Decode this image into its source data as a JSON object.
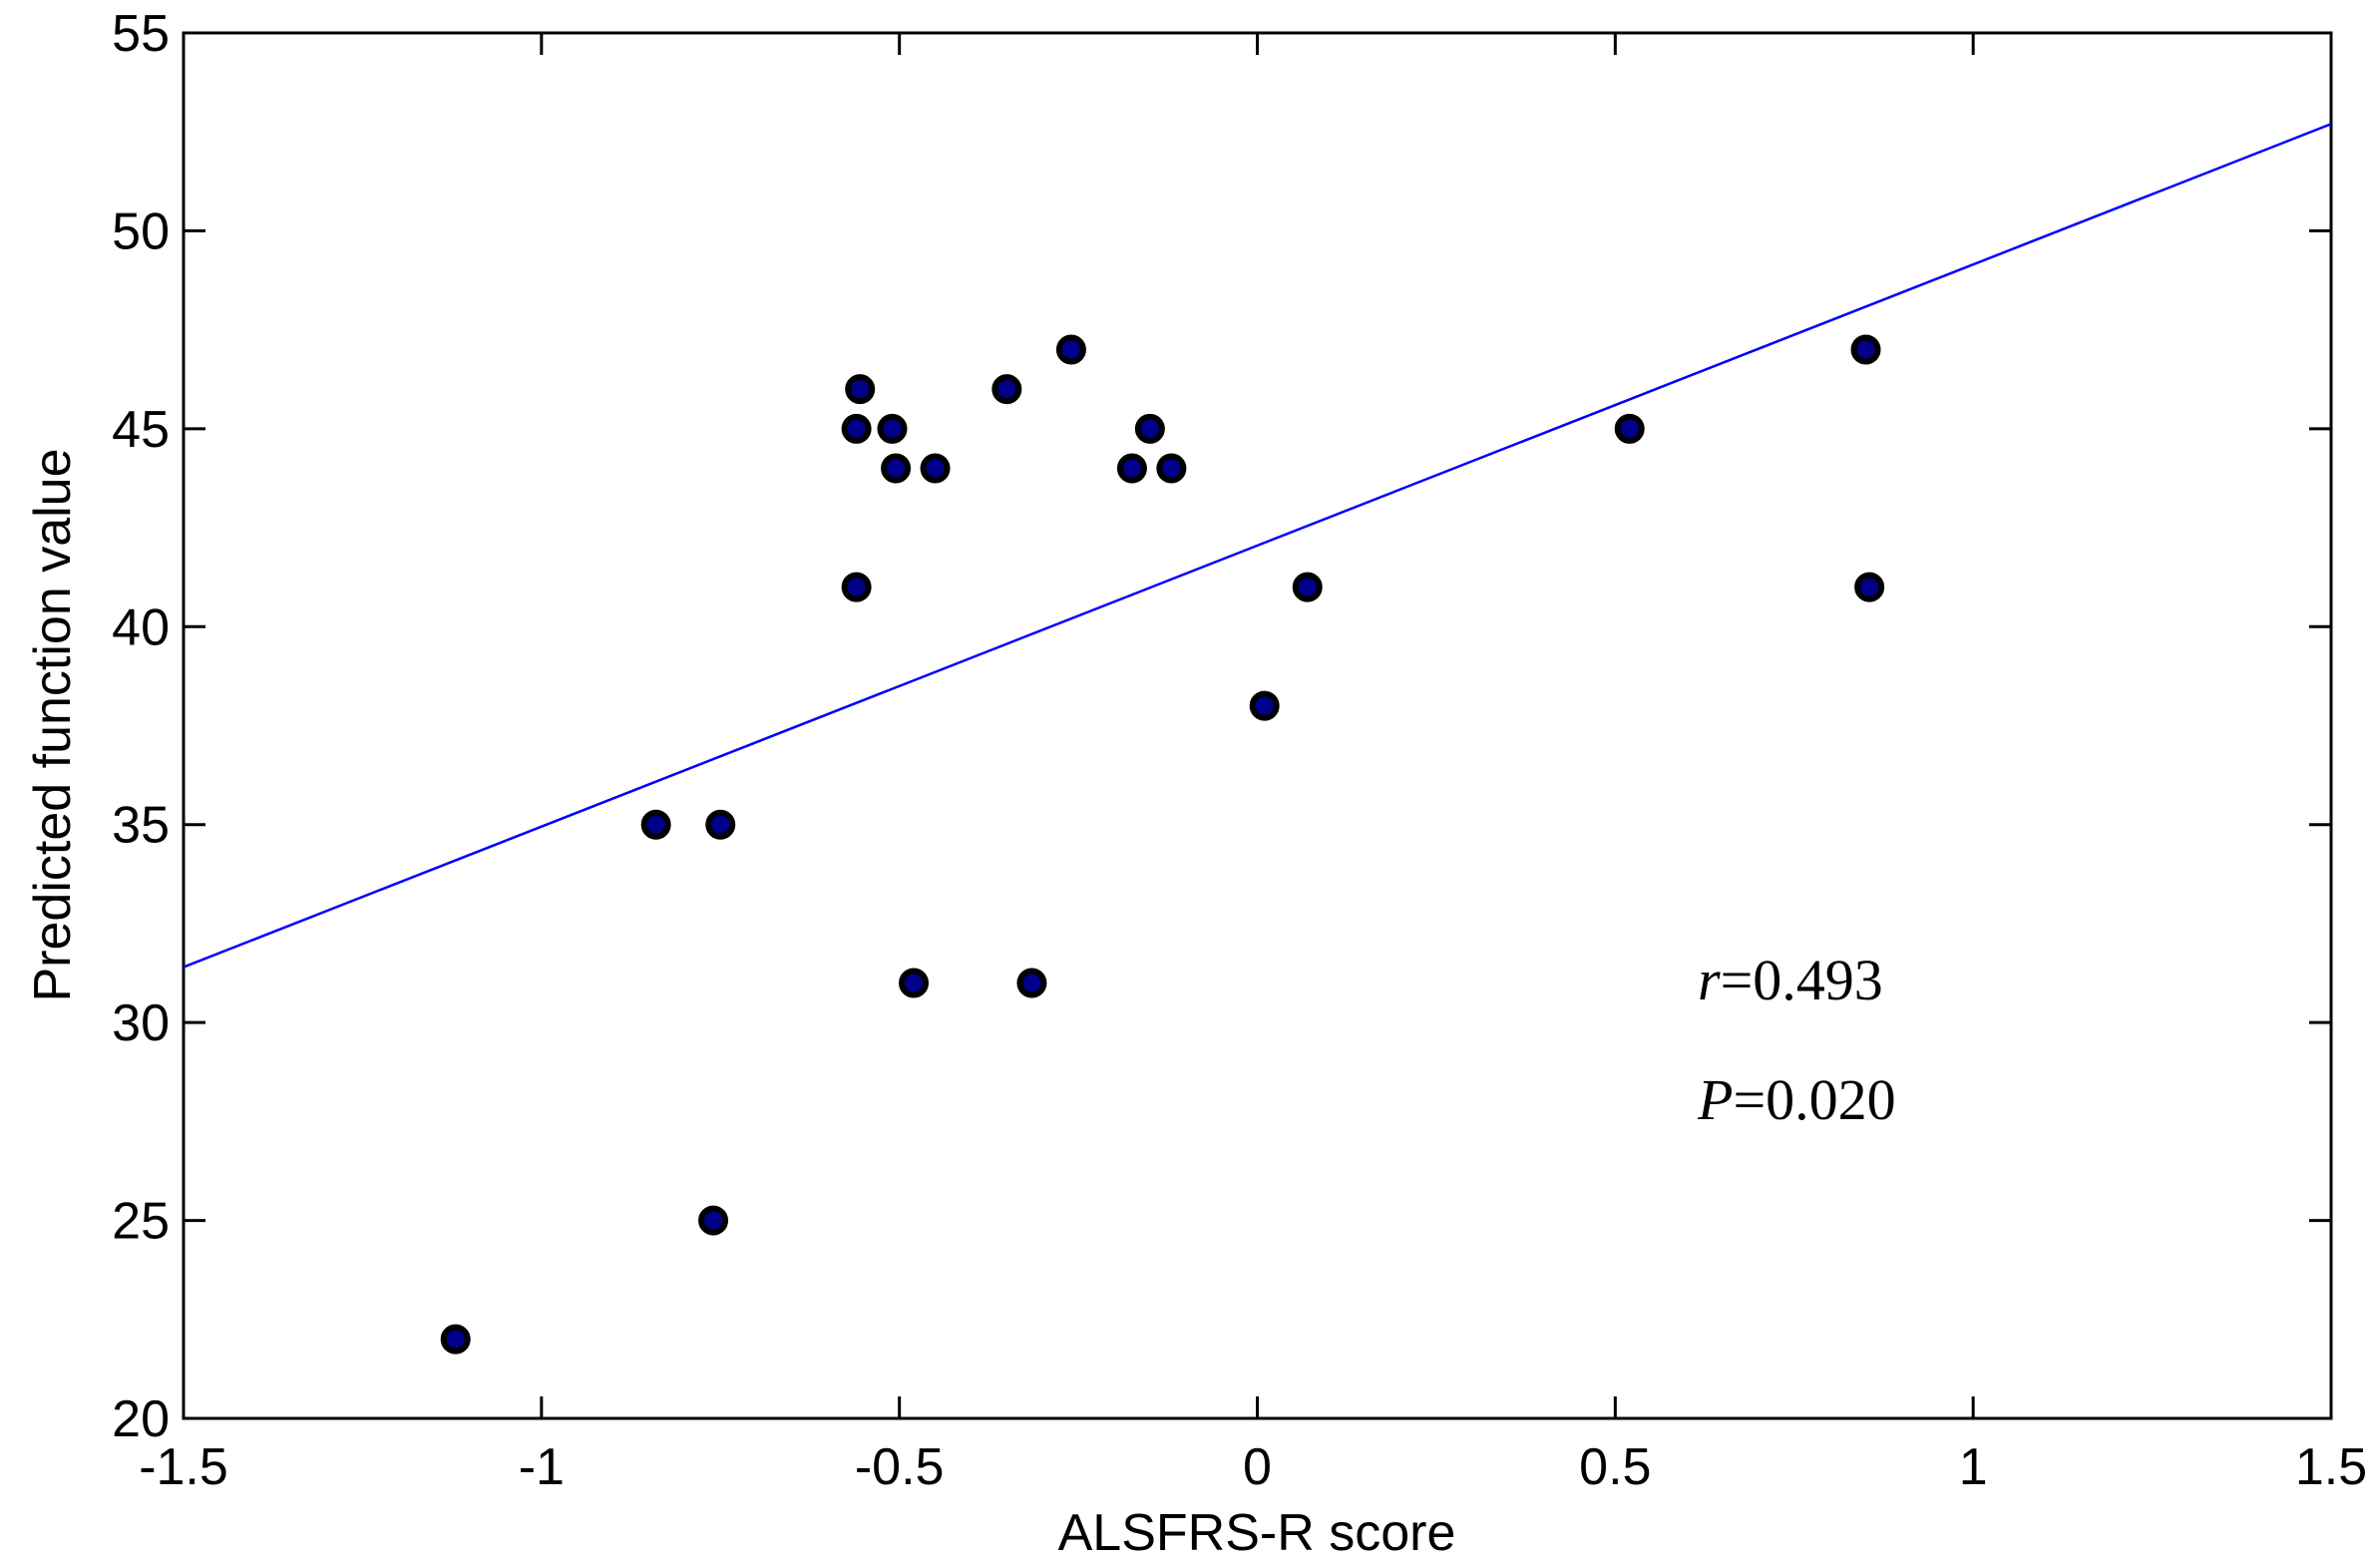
{
  "chart_data": {
    "type": "scatter",
    "xlabel": "ALSFRS-R score",
    "ylabel": "Predicted function value",
    "xlim": [
      -1.5,
      1.5
    ],
    "ylim": [
      20,
      55
    ],
    "xticks": [
      -1.5,
      -1,
      -0.5,
      0,
      0.5,
      1,
      1.5
    ],
    "xtick_labels": [
      "-1.5",
      "-1",
      "-0.5",
      "0",
      "0.5",
      "1",
      "1.5"
    ],
    "yticks": [
      20,
      25,
      30,
      35,
      40,
      45,
      50,
      55
    ],
    "ytick_labels": [
      "20",
      "25",
      "30",
      "35",
      "40",
      "45",
      "50",
      "55"
    ],
    "grid": false,
    "box": true,
    "points": {
      "x": [
        -1.12,
        -0.84,
        -0.76,
        -0.75,
        -0.56,
        -0.56,
        -0.555,
        -0.51,
        -0.505,
        -0.48,
        -0.45,
        -0.35,
        -0.315,
        -0.26,
        -0.175,
        -0.15,
        -0.12,
        0.01,
        0.07,
        0.52,
        0.85,
        0.855
      ],
      "y": [
        22,
        35,
        25,
        35,
        41,
        45,
        46,
        45,
        44,
        31,
        44,
        46,
        31,
        47,
        44,
        45,
        44,
        38,
        41,
        45,
        47,
        41
      ]
    },
    "fit_line": {
      "x": [
        -1.5,
        1.5
      ],
      "y": [
        31.4,
        52.7
      ]
    },
    "annotations": [
      {
        "symbol": "r",
        "value": "=0.493"
      },
      {
        "symbol": "P",
        "value": "=0.020"
      }
    ],
    "colors": {
      "points": "#000000",
      "point_fill": "#00008b",
      "fit_line": "#0000ff",
      "axes": "#000000"
    }
  }
}
